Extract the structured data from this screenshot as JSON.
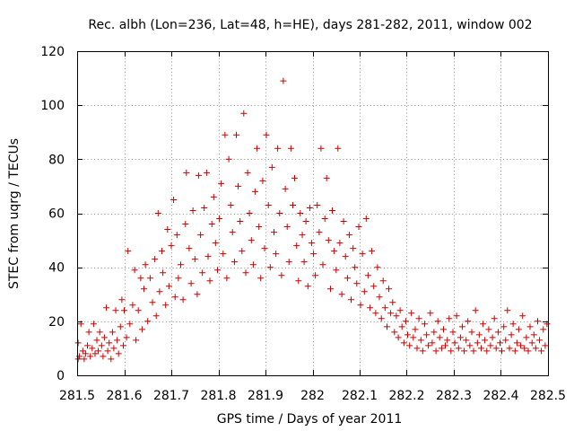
{
  "chart_data": {
    "type": "scatter",
    "title": "Rec. albh (Lon=236, Lat=48, h=HE), days 281-282, 2011, window 002",
    "xlabel": "GPS time / Days of year 2011",
    "ylabel": "STEC from uqrg / TECUs",
    "xlim": [
      281.5,
      282.5
    ],
    "ylim": [
      0,
      120
    ],
    "xticks": [
      281.5,
      281.6,
      281.7,
      281.8,
      281.9,
      282.0,
      282.1,
      282.2,
      282.3,
      282.4,
      282.5
    ],
    "xtick_labels": [
      "281.5",
      "281.6",
      "281.7",
      "281.8",
      "281.9",
      "282",
      "282.1",
      "282.2",
      "282.3",
      "282.4",
      "282.5"
    ],
    "yticks": [
      0,
      20,
      40,
      60,
      80,
      100,
      120
    ],
    "ytick_labels": [
      "0",
      "20",
      "40",
      "60",
      "80",
      "100",
      "120"
    ],
    "grid": true,
    "marker": "plus",
    "color": "#cc0000",
    "series": [
      {
        "name": "STEC",
        "points": [
          [
            281.502,
            12
          ],
          [
            281.502,
            6
          ],
          [
            281.505,
            7
          ],
          [
            281.508,
            19
          ],
          [
            281.512,
            9
          ],
          [
            281.515,
            6
          ],
          [
            281.518,
            8
          ],
          [
            281.522,
            11
          ],
          [
            281.525,
            16
          ],
          [
            281.528,
            7
          ],
          [
            281.532,
            10
          ],
          [
            281.535,
            19
          ],
          [
            281.538,
            8
          ],
          [
            281.542,
            13
          ],
          [
            281.545,
            9
          ],
          [
            281.548,
            16
          ],
          [
            281.552,
            11
          ],
          [
            281.555,
            7
          ],
          [
            281.558,
            14
          ],
          [
            281.562,
            25
          ],
          [
            281.565,
            9
          ],
          [
            281.568,
            12
          ],
          [
            281.572,
            6
          ],
          [
            281.575,
            16
          ],
          [
            281.578,
            10
          ],
          [
            281.582,
            24
          ],
          [
            281.585,
            13
          ],
          [
            281.588,
            8
          ],
          [
            281.592,
            18
          ],
          [
            281.595,
            28
          ],
          [
            281.598,
            11
          ],
          [
            281.6,
            24
          ],
          [
            281.605,
            14
          ],
          [
            281.608,
            46
          ],
          [
            281.612,
            19
          ],
          [
            281.618,
            26
          ],
          [
            281.622,
            39
          ],
          [
            281.625,
            13
          ],
          [
            281.63,
            24
          ],
          [
            281.635,
            36
          ],
          [
            281.638,
            17
          ],
          [
            281.642,
            32
          ],
          [
            281.645,
            41
          ],
          [
            281.65,
            20
          ],
          [
            281.655,
            36
          ],
          [
            281.66,
            27
          ],
          [
            281.665,
            43
          ],
          [
            281.668,
            22
          ],
          [
            281.672,
            60
          ],
          [
            281.675,
            31
          ],
          [
            281.68,
            46
          ],
          [
            281.682,
            38
          ],
          [
            281.688,
            26
          ],
          [
            281.692,
            54
          ],
          [
            281.695,
            33
          ],
          [
            281.7,
            48
          ],
          [
            281.705,
            65
          ],
          [
            281.708,
            29
          ],
          [
            281.712,
            52
          ],
          [
            281.715,
            36
          ],
          [
            281.72,
            41
          ],
          [
            281.725,
            28
          ],
          [
            281.73,
            56
          ],
          [
            281.732,
            75
          ],
          [
            281.738,
            47
          ],
          [
            281.742,
            34
          ],
          [
            281.746,
            61
          ],
          [
            281.75,
            43
          ],
          [
            281.755,
            30
          ],
          [
            281.758,
            74
          ],
          [
            281.762,
            52
          ],
          [
            281.766,
            38
          ],
          [
            281.77,
            62
          ],
          [
            281.775,
            75
          ],
          [
            281.778,
            44
          ],
          [
            281.782,
            35
          ],
          [
            281.786,
            56
          ],
          [
            281.79,
            66
          ],
          [
            281.794,
            49
          ],
          [
            281.798,
            39
          ],
          [
            281.802,
            58
          ],
          [
            281.806,
            71
          ],
          [
            281.81,
            45
          ],
          [
            281.814,
            89
          ],
          [
            281.818,
            36
          ],
          [
            281.822,
            80
          ],
          [
            281.826,
            63
          ],
          [
            281.83,
            53
          ],
          [
            281.834,
            42
          ],
          [
            281.838,
            89
          ],
          [
            281.842,
            70
          ],
          [
            281.846,
            57
          ],
          [
            281.85,
            46
          ],
          [
            281.854,
            97
          ],
          [
            281.858,
            38
          ],
          [
            281.862,
            75
          ],
          [
            281.866,
            60
          ],
          [
            281.87,
            50
          ],
          [
            281.874,
            41
          ],
          [
            281.878,
            68
          ],
          [
            281.882,
            84
          ],
          [
            281.886,
            55
          ],
          [
            281.89,
            36
          ],
          [
            281.894,
            72
          ],
          [
            281.898,
            47
          ],
          [
            281.902,
            89
          ],
          [
            281.906,
            63
          ],
          [
            281.91,
            40
          ],
          [
            281.914,
            77
          ],
          [
            281.918,
            53
          ],
          [
            281.922,
            45
          ],
          [
            281.926,
            84
          ],
          [
            281.93,
            60
          ],
          [
            281.934,
            37
          ],
          [
            281.938,
            109
          ],
          [
            281.942,
            69
          ],
          [
            281.946,
            55
          ],
          [
            281.95,
            42
          ],
          [
            281.954,
            84
          ],
          [
            281.958,
            63
          ],
          [
            281.962,
            73
          ],
          [
            281.966,
            48
          ],
          [
            281.97,
            35
          ],
          [
            281.974,
            60
          ],
          [
            281.978,
            52
          ],
          [
            281.982,
            42
          ],
          [
            281.986,
            57
          ],
          [
            281.99,
            33
          ],
          [
            281.994,
            62
          ],
          [
            281.998,
            49
          ],
          [
            282.002,
            45
          ],
          [
            282.006,
            37
          ],
          [
            282.01,
            63
          ],
          [
            282.014,
            53
          ],
          [
            282.018,
            84
          ],
          [
            282.022,
            41
          ],
          [
            282.026,
            58
          ],
          [
            282.03,
            73
          ],
          [
            282.034,
            50
          ],
          [
            282.038,
            32
          ],
          [
            282.042,
            61
          ],
          [
            282.046,
            46
          ],
          [
            282.05,
            39
          ],
          [
            282.054,
            84
          ],
          [
            282.058,
            49
          ],
          [
            282.062,
            30
          ],
          [
            282.066,
            57
          ],
          [
            282.07,
            44
          ],
          [
            282.074,
            36
          ],
          [
            282.078,
            52
          ],
          [
            282.082,
            28
          ],
          [
            282.086,
            47
          ],
          [
            282.09,
            40
          ],
          [
            282.094,
            34
          ],
          [
            282.098,
            55
          ],
          [
            282.102,
            26
          ],
          [
            282.106,
            45
          ],
          [
            282.11,
            31
          ],
          [
            282.114,
            58
          ],
          [
            282.118,
            37
          ],
          [
            282.122,
            25
          ],
          [
            282.126,
            46
          ],
          [
            282.13,
            33
          ],
          [
            282.134,
            23
          ],
          [
            282.138,
            40
          ],
          [
            282.142,
            29
          ],
          [
            282.146,
            21
          ],
          [
            282.15,
            35
          ],
          [
            282.154,
            25
          ],
          [
            282.158,
            18
          ],
          [
            282.162,
            32
          ],
          [
            282.166,
            23
          ],
          [
            282.17,
            27
          ],
          [
            282.174,
            16
          ],
          [
            282.178,
            22
          ],
          [
            282.182,
            14
          ],
          [
            282.186,
            24
          ],
          [
            282.19,
            18
          ],
          [
            282.194,
            12
          ],
          [
            282.198,
            20
          ],
          [
            282.202,
            15
          ],
          [
            282.206,
            11
          ],
          [
            282.21,
            23
          ],
          [
            282.214,
            14
          ],
          [
            282.218,
            17
          ],
          [
            282.222,
            10
          ],
          [
            282.226,
            21
          ],
          [
            282.23,
            13
          ],
          [
            282.234,
            9
          ],
          [
            282.238,
            19
          ],
          [
            282.242,
            15
          ],
          [
            282.246,
            11
          ],
          [
            282.25,
            23
          ],
          [
            282.254,
            12
          ],
          [
            282.258,
            16
          ],
          [
            282.262,
            9
          ],
          [
            282.266,
            20
          ],
          [
            282.27,
            14
          ],
          [
            282.274,
            10
          ],
          [
            282.278,
            17
          ],
          [
            282.282,
            11
          ],
          [
            282.286,
            13
          ],
          [
            282.29,
            21
          ],
          [
            282.294,
            9
          ],
          [
            282.298,
            16
          ],
          [
            282.302,
            12
          ],
          [
            282.306,
            22
          ],
          [
            282.31,
            10
          ],
          [
            282.314,
            14
          ],
          [
            282.318,
            18
          ],
          [
            282.322,
            9
          ],
          [
            282.326,
            13
          ],
          [
            282.33,
            20
          ],
          [
            282.334,
            11
          ],
          [
            282.338,
            16
          ],
          [
            282.342,
            9
          ],
          [
            282.346,
            24
          ],
          [
            282.35,
            12
          ],
          [
            282.354,
            15
          ],
          [
            282.358,
            10
          ],
          [
            282.362,
            19
          ],
          [
            282.366,
            13
          ],
          [
            282.37,
            9
          ],
          [
            282.374,
            17
          ],
          [
            282.378,
            11
          ],
          [
            282.382,
            14
          ],
          [
            282.386,
            21
          ],
          [
            282.39,
            10
          ],
          [
            282.394,
            16
          ],
          [
            282.398,
            12
          ],
          [
            282.402,
            9
          ],
          [
            282.406,
            18
          ],
          [
            282.41,
            13
          ],
          [
            282.414,
            24
          ],
          [
            282.418,
            10
          ],
          [
            282.422,
            15
          ],
          [
            282.426,
            19
          ],
          [
            282.43,
            9
          ],
          [
            282.434,
            12
          ],
          [
            282.438,
            17
          ],
          [
            282.442,
            11
          ],
          [
            282.446,
            22
          ],
          [
            282.45,
            10
          ],
          [
            282.454,
            14
          ],
          [
            282.458,
            9
          ],
          [
            282.462,
            18
          ],
          [
            282.466,
            12
          ],
          [
            282.47,
            15
          ],
          [
            282.474,
            10
          ],
          [
            282.478,
            20
          ],
          [
            282.482,
            13
          ],
          [
            282.486,
            9
          ],
          [
            282.49,
            17
          ],
          [
            282.494,
            11
          ],
          [
            282.498,
            19
          ]
        ]
      }
    ]
  }
}
